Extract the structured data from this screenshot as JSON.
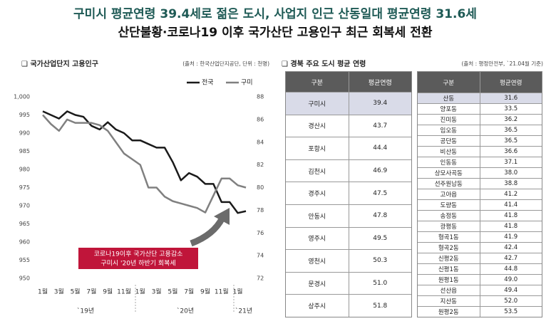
{
  "header": {
    "title": "구미시 평균연령 39.4세로 젊은 도시, 사업지 인근 산동일대 평균연령 31.6세",
    "subtitle": "산단불황·코로나19 이후 국가산단 고용인구 최근 회복세 전환"
  },
  "chart_data": {
    "type": "line",
    "title": "❑ 국가산업단지 고용인구",
    "source": "(출처 : 한국산업단지공단, 단위 : 천명)",
    "categories": [
      "1월",
      null,
      "3월",
      null,
      "5월",
      null,
      "7월",
      null,
      "9월",
      null,
      "11월",
      null,
      "1월",
      null,
      "3월",
      null,
      "5월",
      null,
      "7월",
      null,
      "9월",
      null,
      "11월",
      null,
      "1월",
      null
    ],
    "x_groups": [
      "`19년",
      "`20년",
      "`21년"
    ],
    "series": [
      {
        "name": "전국",
        "color": "#1a1a1a",
        "axis": "y",
        "values": [
          996,
          995,
          994,
          996,
          995,
          994.5,
          992,
          991,
          993,
          991,
          990,
          988,
          988,
          987,
          986,
          986,
          982,
          977,
          979,
          978,
          976,
          976,
          971,
          971,
          968,
          968.5
        ]
      },
      {
        "name": "구미",
        "color": "#808080",
        "axis": "y2",
        "values": [
          86.4,
          85.6,
          85,
          86,
          85.7,
          85.7,
          85.7,
          85.5,
          85,
          84,
          83,
          82.5,
          82,
          80,
          80,
          79.2,
          78.8,
          78.6,
          78.4,
          78.2,
          77.8,
          79.3,
          80.8,
          80.8,
          80.2,
          80
        ]
      }
    ],
    "ylim": [
      950,
      1000
    ],
    "yticks": [
      950,
      955,
      960,
      965,
      970,
      975,
      980,
      985,
      990,
      995,
      {
        "value": 1000,
        "label": "1,000"
      }
    ],
    "y2lim": [
      72,
      88
    ],
    "y2ticks": [
      72,
      74,
      76,
      78,
      80,
      82,
      84,
      86,
      88
    ],
    "annotation": [
      "코로나19이후 국가산단 고용감소",
      "구미시 '20년 하반기 회복세"
    ]
  },
  "tables": {
    "title": "❑ 경북 주요 도시 평균 연령",
    "source": "(출처 : 행정안전부, `21.04월 기준)",
    "left": {
      "columns": [
        "구분",
        "평균연령"
      ],
      "rows": [
        [
          "구미시",
          "39.4"
        ],
        [
          "경산시",
          "43.7"
        ],
        [
          "포항시",
          "44.4"
        ],
        [
          "김천시",
          "46.9"
        ],
        [
          "경주시",
          "47.5"
        ],
        [
          "안동시",
          "47.8"
        ],
        [
          "영주시",
          "49.5"
        ],
        [
          "영천시",
          "50.3"
        ],
        [
          "문경시",
          "51.0"
        ],
        [
          "상주시",
          "51.8"
        ]
      ]
    },
    "right": {
      "columns": [
        "구분",
        "평균연령"
      ],
      "rows": [
        [
          "산동",
          "31.6"
        ],
        [
          "양포동",
          "33.5"
        ],
        [
          "진미동",
          "36.2"
        ],
        [
          "임오동",
          "36.5"
        ],
        [
          "공단동",
          "36.5"
        ],
        [
          "비산동",
          "36.6"
        ],
        [
          "인동동",
          "37.1"
        ],
        [
          "상모사곡동",
          "38.0"
        ],
        [
          "선주원남동",
          "38.8"
        ],
        [
          "고아읍",
          "41.2"
        ],
        [
          "도량동",
          "41.4"
        ],
        [
          "송정동",
          "41.8"
        ],
        [
          "광평동",
          "41.8"
        ],
        [
          "형곡1동",
          "41.9"
        ],
        [
          "형곡2동",
          "42.4"
        ],
        [
          "신평2동",
          "42.7"
        ],
        [
          "신평1동",
          "44.8"
        ],
        [
          "원평1동",
          "49.0"
        ],
        [
          "선산읍",
          "49.4"
        ],
        [
          "지산동",
          "52.0"
        ],
        [
          "원평2동",
          "53.5"
        ]
      ]
    }
  }
}
